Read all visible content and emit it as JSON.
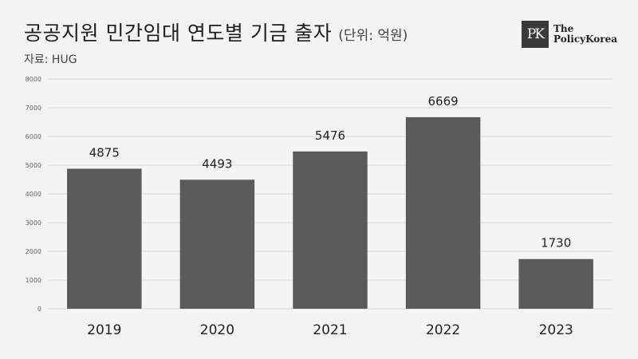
{
  "header": {
    "title": "공공지원 민간임대 연도별 기금 출자",
    "unit": "(단위: 억원)",
    "source": "자료: HUG"
  },
  "logo": {
    "mark": "PK",
    "line1": "The",
    "line2": "PolicyKorea"
  },
  "colors": {
    "bar": "#5a5a5a",
    "grid": "#d6d6d6",
    "background": "#f4f4f4"
  },
  "chart_data": {
    "type": "bar",
    "title": "공공지원 민간임대 연도별 기금 출자",
    "xlabel": "",
    "ylabel": "",
    "categories": [
      "2019",
      "2020",
      "2021",
      "2022",
      "2023"
    ],
    "values": [
      4875,
      4493,
      5476,
      6669,
      1730
    ],
    "ylim": [
      0,
      8000
    ],
    "yticks": [
      0,
      1000,
      2000,
      3000,
      4000,
      5000,
      6000,
      7000,
      8000
    ],
    "grid": true,
    "legend": "none"
  }
}
